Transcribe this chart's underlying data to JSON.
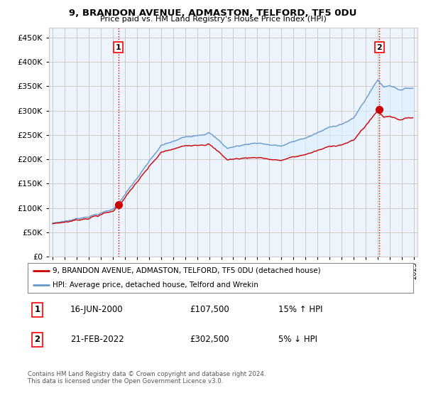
{
  "title": "9, BRANDON AVENUE, ADMASTON, TELFORD, TF5 0DU",
  "subtitle": "Price paid vs. HM Land Registry's House Price Index (HPI)",
  "legend_line1": "9, BRANDON AVENUE, ADMASTON, TELFORD, TF5 0DU (detached house)",
  "legend_line2": "HPI: Average price, detached house, Telford and Wrekin",
  "footer1": "Contains HM Land Registry data © Crown copyright and database right 2024.",
  "footer2": "This data is licensed under the Open Government Licence v3.0.",
  "annotation1_label": "1",
  "annotation1_date": "16-JUN-2000",
  "annotation1_price": "£107,500",
  "annotation1_hpi": "15% ↑ HPI",
  "annotation2_label": "2",
  "annotation2_date": "21-FEB-2022",
  "annotation2_price": "£302,500",
  "annotation2_hpi": "5% ↓ HPI",
  "ylim": [
    0,
    470000
  ],
  "yticks": [
    0,
    50000,
    100000,
    150000,
    200000,
    250000,
    300000,
    350000,
    400000,
    450000
  ],
  "hpi_color": "#6699cc",
  "price_color": "#cc0000",
  "vline_color": "#cc0000",
  "fill_color": "#ddeeff",
  "background_color": "#ffffff",
  "grid_color": "#cccccc",
  "point1_x": 2000.46,
  "point1_y": 107500,
  "point2_x": 2022.13,
  "point2_y": 302500,
  "xmin": 1995.0,
  "xmax": 2025.0
}
